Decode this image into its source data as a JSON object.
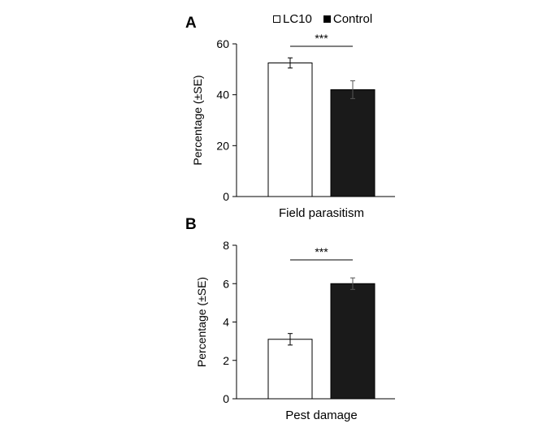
{
  "legend": [
    {
      "label": "LC10",
      "fill": "#ffffff"
    },
    {
      "label": "Control",
      "fill": "#1a1a1a"
    }
  ],
  "chart_data": [
    {
      "type": "bar",
      "panel_label": "A",
      "xlabel": "Field parasitism",
      "ylabel": "Percentage (±SE)",
      "ylim": [
        0,
        60
      ],
      "yticks": [
        0,
        20,
        40,
        60
      ],
      "series": [
        {
          "name": "LC10",
          "value": 52.5,
          "se": 2.0
        },
        {
          "name": "Control",
          "value": 42.0,
          "se": 3.5
        }
      ],
      "significance": "***"
    },
    {
      "type": "bar",
      "panel_label": "B",
      "xlabel": "Pest damage",
      "ylabel": "Percentage (±SE)",
      "ylim": [
        0,
        8
      ],
      "yticks": [
        0,
        2,
        4,
        6,
        8
      ],
      "series": [
        {
          "name": "LC10",
          "value": 3.1,
          "se": 0.3
        },
        {
          "name": "Control",
          "value": 6.0,
          "se": 0.3
        }
      ],
      "significance": "***"
    }
  ]
}
